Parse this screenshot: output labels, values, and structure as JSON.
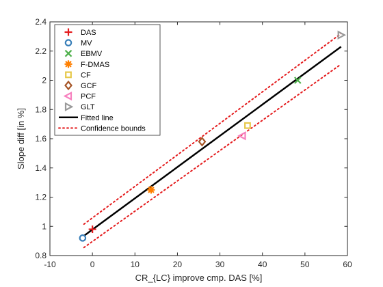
{
  "chart_data": {
    "type": "scatter",
    "xlabel": "CR_{LC} improve cmp. DAS [%]",
    "ylabel": "Slope diff [in %]",
    "xlim": [
      -10,
      60
    ],
    "ylim": [
      0.8,
      2.4
    ],
    "xticks": [
      -10,
      0,
      10,
      20,
      30,
      40,
      50,
      60
    ],
    "yticks": [
      0.8,
      1,
      1.2,
      1.4,
      1.6,
      1.8,
      2,
      2.2,
      2.4
    ],
    "ytick_labels": [
      "0.8",
      "1",
      "1.2",
      "1.4",
      "1.6",
      "1.8",
      "2",
      "2.2",
      "2.4"
    ],
    "legend_position": "top-left",
    "series": [
      {
        "name": "DAS",
        "marker": "plus",
        "color": "#e41a1c",
        "x": [
          0
        ],
        "y": [
          0.98
        ]
      },
      {
        "name": "MV",
        "marker": "circle",
        "color": "#377eb8",
        "x": [
          -2.3
        ],
        "y": [
          0.92
        ]
      },
      {
        "name": "EBMV",
        "marker": "x",
        "color": "#4daf4a",
        "x": [
          48.3
        ],
        "y": [
          2.0
        ]
      },
      {
        "name": "F-DMAS",
        "marker": "asterisk",
        "color": "#ff7f00",
        "x": [
          13.8
        ],
        "y": [
          1.25
        ]
      },
      {
        "name": "CF",
        "marker": "square",
        "color": "#e6c84a",
        "x": [
          36.5
        ],
        "y": [
          1.69
        ]
      },
      {
        "name": "GCF",
        "marker": "diamond",
        "color": "#a65628",
        "x": [
          25.8
        ],
        "y": [
          1.58
        ]
      },
      {
        "name": "PCF",
        "marker": "triangle-left",
        "color": "#f781bf",
        "x": [
          35.3
        ],
        "y": [
          1.62
        ]
      },
      {
        "name": "GLT",
        "marker": "triangle-right",
        "color": "#999999",
        "x": [
          58.5
        ],
        "y": [
          2.31
        ]
      }
    ],
    "fitted_line": {
      "name": "Fitted line",
      "color": "#000000",
      "x": [
        -2,
        58.5
      ],
      "y": [
        0.935,
        2.23
      ]
    },
    "confidence_bounds": {
      "name": "Confidence bounds",
      "color": "#e41a1c",
      "upper": {
        "x": [
          -2,
          58.5
        ],
        "y": [
          1.015,
          2.32
        ]
      },
      "lower": {
        "x": [
          -2,
          58.5
        ],
        "y": [
          0.855,
          2.11
        ]
      }
    }
  }
}
